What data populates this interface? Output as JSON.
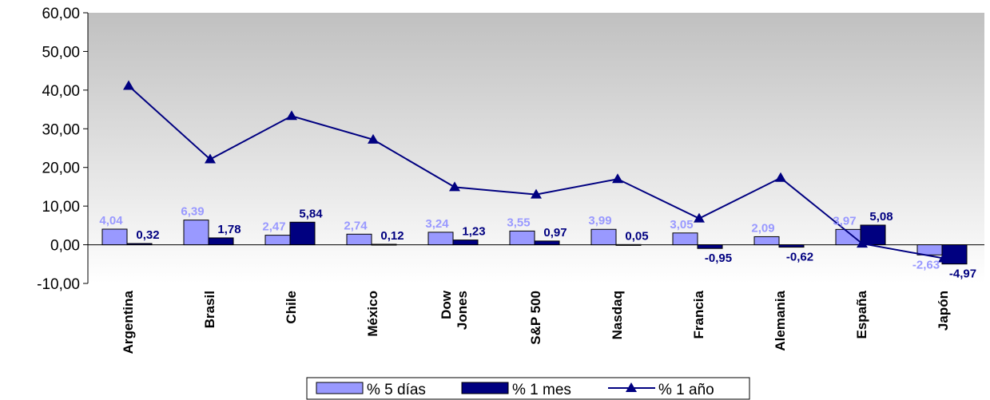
{
  "chart_data": {
    "type": "bar",
    "categories": [
      "Argentina",
      "Brasil",
      "Chile",
      "México",
      "Dow\nJones",
      "S&P 500",
      "Nasdaq",
      "Francia",
      "Alemania",
      "España",
      "Japón"
    ],
    "series": [
      {
        "name": "% 5 días",
        "type": "bar",
        "color": "#9999ff",
        "values": [
          4.04,
          6.39,
          2.47,
          2.74,
          3.24,
          3.55,
          3.99,
          3.05,
          2.09,
          3.97,
          -2.63
        ],
        "labels": [
          "4,04",
          "6,39",
          "2,47",
          "2,74",
          "3,24",
          "3,55",
          "3,99",
          "3,05",
          "2,09",
          "3,97",
          "-2,63"
        ]
      },
      {
        "name": "% 1 mes",
        "type": "bar",
        "color": "#000080",
        "values": [
          0.32,
          1.78,
          5.84,
          0.12,
          1.23,
          0.97,
          0.05,
          -0.95,
          -0.62,
          5.08,
          -4.97
        ],
        "labels": [
          "0,32",
          "1,78",
          "5,84",
          "0,12",
          "1,23",
          "0,97",
          "0,05",
          "-0,95",
          "-0,62",
          "5,08",
          "-4,97"
        ]
      },
      {
        "name": "% 1 año",
        "type": "line",
        "color": "#000080",
        "marker": "triangle",
        "values": [
          41.1,
          22.1,
          33.3,
          27.2,
          14.9,
          13.0,
          17.0,
          6.8,
          17.3,
          0.3,
          -3.5
        ]
      }
    ],
    "ylim": [
      -10,
      60
    ],
    "yticks": [
      "60,00",
      "50,00",
      "40,00",
      "30,00",
      "20,00",
      "10,00",
      "0,00",
      "-10,00"
    ],
    "legend_position": "bottom",
    "colors": {
      "plot_gradient_top": "#c0c0c0",
      "plot_gradient_bottom": "#ffffff"
    }
  }
}
